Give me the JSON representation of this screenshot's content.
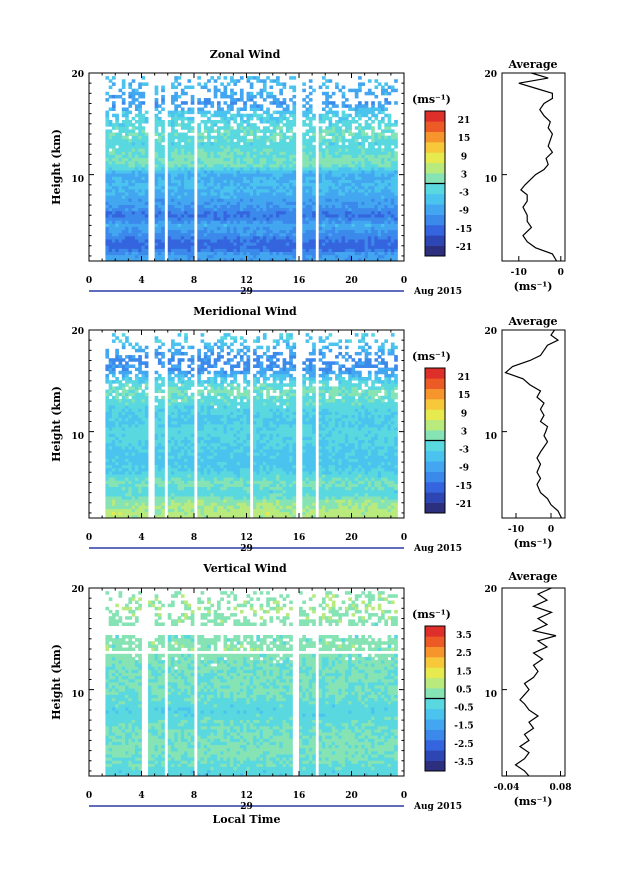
{
  "palette": [
    "#2b2f7e",
    "#2e45b4",
    "#3465de",
    "#3c89ec",
    "#43a6f0",
    "#4bc3ef",
    "#5ad8e0",
    "#86e3b4",
    "#b8ea7e",
    "#e6ea4f",
    "#f7c83a",
    "#f5952c",
    "#ec5b25",
    "#df2f2a"
  ],
  "chart_data": [
    {
      "type": "heatmap",
      "title": "Zonal Wind",
      "xlabel": "",
      "ylabel": "Height (km)",
      "x_ticks": [
        "0",
        "4",
        "8",
        "12",
        "16",
        "20",
        "0"
      ],
      "y_ticks": [
        "10",
        "20"
      ],
      "date_label": "29",
      "date_suffix": "Aug 2015",
      "xlim": [
        0,
        24
      ],
      "ylim": [
        1.5,
        20
      ],
      "colorbar": {
        "unit": "(ms⁻¹)",
        "ticks": [
          "21",
          "15",
          "9",
          "3",
          "-3",
          "-9",
          "-15",
          "-21"
        ],
        "range": [
          -24,
          24
        ]
      },
      "time_gaps_h": [
        [
          0,
          1.2
        ],
        [
          4.6,
          5.0
        ],
        [
          5.8,
          6.1
        ],
        [
          8.0,
          8.3
        ],
        [
          15.8,
          16.3
        ],
        [
          17.3,
          17.6
        ],
        [
          22.4,
          22.6
        ],
        [
          23.6,
          24
        ]
      ],
      "field_profile": [
        [
          2,
          -9
        ],
        [
          3,
          -16
        ],
        [
          4,
          -12
        ],
        [
          5,
          -8
        ],
        [
          6,
          -14
        ],
        [
          7,
          -10
        ],
        [
          8,
          -8
        ],
        [
          9,
          -6
        ],
        [
          10,
          -8
        ],
        [
          11,
          1
        ],
        [
          12,
          0
        ],
        [
          13,
          -2
        ],
        [
          14,
          0
        ],
        [
          15,
          -2
        ],
        [
          16,
          -4
        ],
        [
          17,
          -10
        ],
        [
          18,
          -8
        ],
        [
          19,
          -6
        ]
      ],
      "average": {
        "title": "Average",
        "xlabel": "(ms⁻¹)",
        "x_ticks": [
          "-10",
          "0"
        ],
        "y_ticks": [
          "10",
          "20"
        ],
        "xlim": [
          -14,
          1
        ],
        "ylim": [
          1.5,
          20
        ],
        "profile": [
          [
            1.5,
            -1
          ],
          [
            2.2,
            -2
          ],
          [
            2.8,
            -6
          ],
          [
            3.4,
            -8
          ],
          [
            4.0,
            -9
          ],
          [
            4.8,
            -7
          ],
          [
            5.4,
            -8
          ],
          [
            6.0,
            -8
          ],
          [
            6.8,
            -9
          ],
          [
            7.4,
            -8
          ],
          [
            8.0,
            -8
          ],
          [
            8.5,
            -9.5
          ],
          [
            9.0,
            -8.5
          ],
          [
            9.6,
            -7
          ],
          [
            10.0,
            -6
          ],
          [
            10.5,
            -4
          ],
          [
            11.0,
            -3
          ],
          [
            11.6,
            -3.5
          ],
          [
            12.2,
            -2
          ],
          [
            12.8,
            -3
          ],
          [
            13.4,
            -2.5
          ],
          [
            14.0,
            -2
          ],
          [
            14.6,
            -3
          ],
          [
            15.2,
            -2.5
          ],
          [
            15.8,
            -4
          ],
          [
            16.4,
            -5
          ],
          [
            17.0,
            -4
          ],
          [
            17.5,
            -2
          ],
          [
            18.0,
            -2
          ],
          [
            18.5,
            -6
          ],
          [
            19.0,
            -10
          ],
          [
            19.5,
            -3
          ],
          [
            20.0,
            -7
          ]
        ]
      }
    },
    {
      "type": "heatmap",
      "title": "Meridional Wind",
      "xlabel": "",
      "ylabel": "Height (km)",
      "x_ticks": [
        "0",
        "4",
        "8",
        "12",
        "16",
        "20",
        "0"
      ],
      "y_ticks": [
        "10",
        "20"
      ],
      "date_label": "29",
      "date_suffix": "Aug 2015",
      "xlim": [
        0,
        24
      ],
      "ylim": [
        1.5,
        20
      ],
      "colorbar": {
        "unit": "(ms⁻¹)",
        "ticks": [
          "21",
          "15",
          "9",
          "3",
          "-3",
          "-9",
          "-15",
          "-21"
        ],
        "range": [
          -24,
          24
        ]
      },
      "time_gaps_h": [
        [
          0,
          1.2
        ],
        [
          4.6,
          5.0
        ],
        [
          5.8,
          6.1
        ],
        [
          8.0,
          8.3
        ],
        [
          12.2,
          12.5
        ],
        [
          15.8,
          16.3
        ],
        [
          17.3,
          17.6
        ],
        [
          22.4,
          22.6
        ],
        [
          23.6,
          24
        ]
      ],
      "field_profile": [
        [
          2,
          5
        ],
        [
          3,
          3
        ],
        [
          4,
          -2
        ],
        [
          5,
          1
        ],
        [
          6,
          -3
        ],
        [
          7,
          -5
        ],
        [
          8,
          -4
        ],
        [
          9,
          -3
        ],
        [
          10,
          -2
        ],
        [
          11,
          -4
        ],
        [
          12,
          -3
        ],
        [
          13,
          -1
        ],
        [
          14,
          1
        ],
        [
          15,
          -3
        ],
        [
          16,
          -10
        ],
        [
          17,
          -12
        ],
        [
          18,
          -8
        ],
        [
          19,
          -4
        ]
      ],
      "average": {
        "title": "Average",
        "xlabel": "(ms⁻¹)",
        "x_ticks": [
          "-10",
          "0"
        ],
        "y_ticks": [
          "10",
          "20"
        ],
        "xlim": [
          -14,
          4
        ],
        "ylim": [
          1.5,
          20
        ],
        "profile": [
          [
            1.5,
            3
          ],
          [
            2.2,
            2
          ],
          [
            2.8,
            0
          ],
          [
            3.4,
            -1
          ],
          [
            4.0,
            -3
          ],
          [
            4.8,
            -4
          ],
          [
            5.4,
            -3
          ],
          [
            6.0,
            -4
          ],
          [
            6.8,
            -3
          ],
          [
            7.4,
            -4
          ],
          [
            8.0,
            -3
          ],
          [
            8.5,
            -2
          ],
          [
            9.0,
            -1
          ],
          [
            9.6,
            -2
          ],
          [
            10.0,
            -1.5
          ],
          [
            10.5,
            -1
          ],
          [
            11.0,
            -3
          ],
          [
            11.6,
            -2
          ],
          [
            12.2,
            -3
          ],
          [
            12.8,
            -2
          ],
          [
            13.4,
            -4
          ],
          [
            14.0,
            -3
          ],
          [
            14.6,
            -6
          ],
          [
            15.2,
            -8
          ],
          [
            15.8,
            -13
          ],
          [
            16.4,
            -11
          ],
          [
            17.0,
            -6
          ],
          [
            17.5,
            -3
          ],
          [
            18.0,
            -2
          ],
          [
            18.5,
            -1
          ],
          [
            19.0,
            2
          ],
          [
            19.5,
            0
          ],
          [
            20.0,
            1
          ]
        ]
      }
    },
    {
      "type": "heatmap",
      "title": "Vertical Wind",
      "xlabel": "Local Time",
      "ylabel": "Height (km)",
      "x_ticks": [
        "0",
        "4",
        "8",
        "12",
        "16",
        "20",
        "0"
      ],
      "y_ticks": [
        "10",
        "20"
      ],
      "date_label": "29",
      "date_suffix": "Aug 2015",
      "xlim": [
        0,
        24
      ],
      "ylim": [
        1.5,
        20
      ],
      "colorbar": {
        "unit": "(ms⁻¹)",
        "ticks": [
          "3.5",
          "2.5",
          "1.5",
          "0.5",
          "-0.5",
          "-1.5",
          "-2.5",
          "-3.5"
        ],
        "range": [
          -4,
          4
        ]
      },
      "time_gaps_h": [
        [
          0,
          1.2
        ],
        [
          4.0,
          4.5
        ],
        [
          5.8,
          6.1
        ],
        [
          8.0,
          8.3
        ],
        [
          15.5,
          16.0
        ],
        [
          17.3,
          17.6
        ],
        [
          23.6,
          24
        ]
      ],
      "height_gaps_km": [
        [
          15.3,
          16.3
        ],
        [
          13.4,
          13.9
        ]
      ],
      "field_profile": [
        [
          2,
          -0.3
        ],
        [
          4,
          0.2
        ],
        [
          6,
          0
        ],
        [
          8,
          -0.4
        ],
        [
          10,
          0.1
        ],
        [
          12,
          0
        ],
        [
          14,
          0.3
        ],
        [
          16,
          0.2
        ],
        [
          18,
          0.5
        ],
        [
          19.5,
          0.3
        ]
      ],
      "average": {
        "title": "Average",
        "xlabel": "(ms⁻¹)",
        "x_ticks": [
          "-0.04",
          "0.08"
        ],
        "y_ticks": [
          "10",
          "20"
        ],
        "xlim": [
          -0.05,
          0.09
        ],
        "ylim": [
          1.5,
          20
        ],
        "profile": [
          [
            1.5,
            0.01
          ],
          [
            2.0,
            0.0
          ],
          [
            2.6,
            -0.02
          ],
          [
            3.2,
            0.0
          ],
          [
            3.8,
            0.01
          ],
          [
            4.4,
            -0.01
          ],
          [
            5.0,
            0.01
          ],
          [
            5.6,
            0.0
          ],
          [
            6.2,
            0.02
          ],
          [
            6.8,
            0.01
          ],
          [
            7.4,
            0.03
          ],
          [
            8.0,
            0.01
          ],
          [
            8.6,
            0.0
          ],
          [
            9.0,
            -0.01
          ],
          [
            9.5,
            0.0
          ],
          [
            10.0,
            0.01
          ],
          [
            10.6,
            0.0
          ],
          [
            11.2,
            0.02
          ],
          [
            11.8,
            0.03
          ],
          [
            12.4,
            0.02
          ],
          [
            13.0,
            0.04
          ],
          [
            13.6,
            0.02
          ],
          [
            14.2,
            0.05
          ],
          [
            14.8,
            0.03
          ],
          [
            15.3,
            0.07
          ],
          [
            15.8,
            0.02
          ],
          [
            16.4,
            0.05
          ],
          [
            17.0,
            0.03
          ],
          [
            17.6,
            0.06
          ],
          [
            18.2,
            0.02
          ],
          [
            18.8,
            0.05
          ],
          [
            19.4,
            0.03
          ],
          [
            20.0,
            0.06
          ]
        ]
      }
    }
  ]
}
